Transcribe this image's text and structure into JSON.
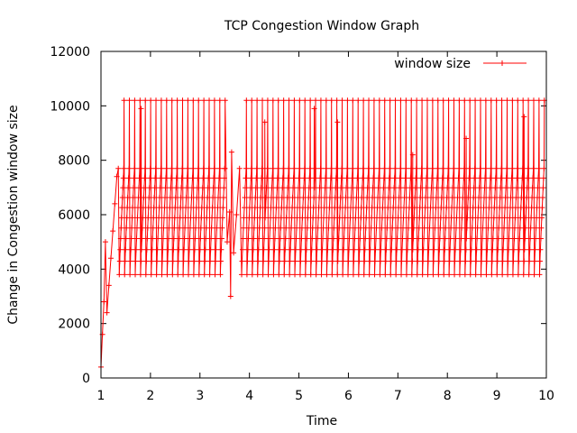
{
  "chart_data": {
    "type": "line",
    "title": "TCP Congestion Window Graph",
    "xlabel": "Time",
    "ylabel": "Change in Congestion window size",
    "xlim": [
      1,
      10
    ],
    "ylim": [
      0,
      12000
    ],
    "xticks": [
      "1",
      "2",
      "3",
      "4",
      "5",
      "6",
      "7",
      "8",
      "9",
      "10"
    ],
    "yticks": [
      "0",
      "2000",
      "4000",
      "6000",
      "8000",
      "10000",
      "12000"
    ],
    "grid": false,
    "legend_position": "top-right",
    "marker": "plus",
    "series": [
      {
        "name": "window size",
        "color": "#ff0000",
        "startup": [
          [
            1.0,
            400
          ],
          [
            1.03,
            1600
          ],
          [
            1.06,
            2800
          ],
          [
            1.09,
            5000
          ],
          [
            1.12,
            2400
          ],
          [
            1.16,
            3400
          ],
          [
            1.2,
            4400
          ],
          [
            1.24,
            5400
          ],
          [
            1.28,
            6400
          ],
          [
            1.32,
            7400
          ],
          [
            1.35,
            7700
          ]
        ],
        "cycle": {
          "start": 1.37,
          "end": 10.0,
          "period": 0.1075,
          "peak": 7700,
          "trough": 3800,
          "spike": 10200
        },
        "disturbance": [
          [
            3.5,
            7700
          ],
          [
            3.55,
            5000
          ],
          [
            3.6,
            6100
          ],
          [
            3.62,
            3000
          ],
          [
            3.64,
            8300
          ],
          [
            3.68,
            4600
          ],
          [
            3.74,
            6000
          ],
          [
            3.8,
            7700
          ]
        ],
        "spikes": [
          [
            1.81,
            9900
          ],
          [
            4.31,
            9400
          ],
          [
            5.31,
            9900
          ],
          [
            5.78,
            9400
          ],
          [
            7.3,
            8200
          ],
          [
            8.38,
            8800
          ],
          [
            9.55,
            9600
          ]
        ]
      }
    ]
  }
}
